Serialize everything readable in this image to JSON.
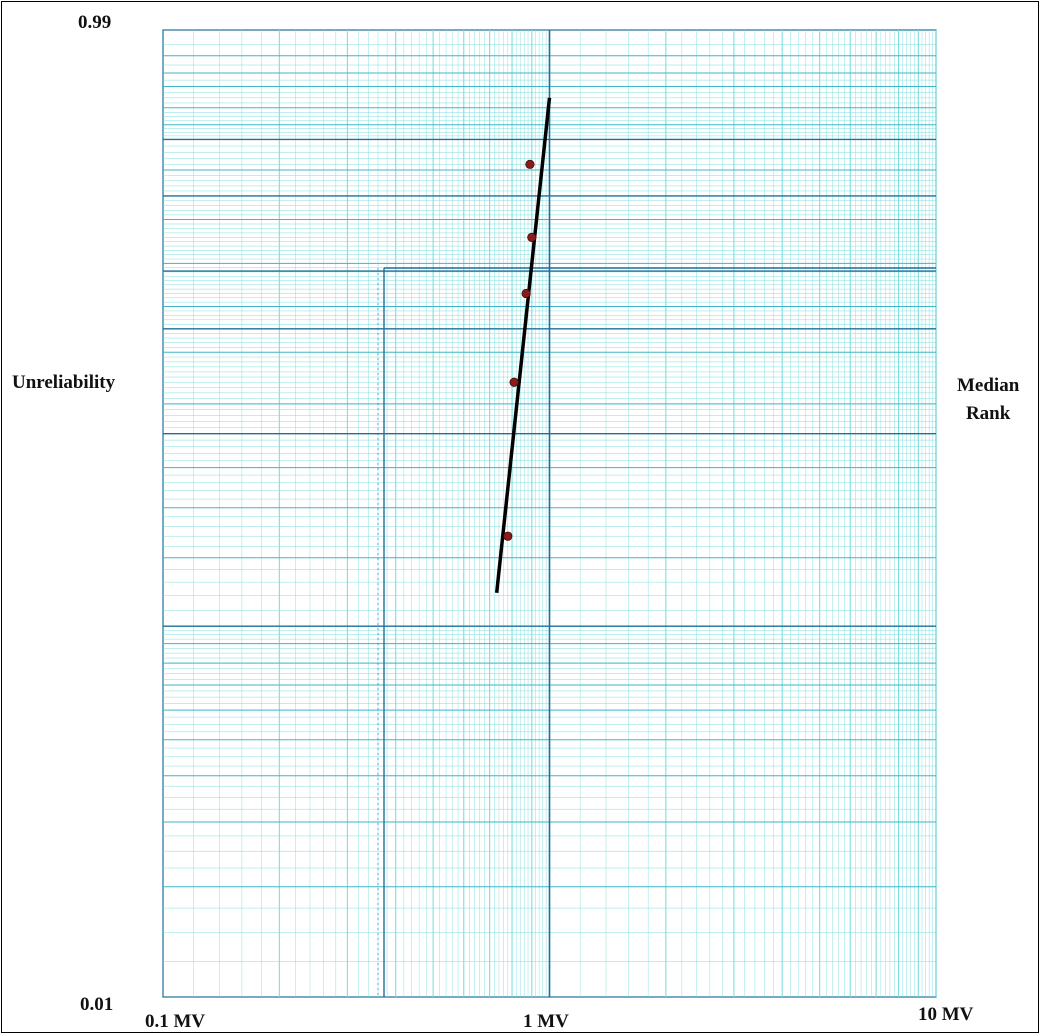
{
  "chart_data": {
    "type": "scatter",
    "paper": "weibull probability paper",
    "x_scale": "log",
    "y_scale": "weibull",
    "xlim": [
      0.1,
      10
    ],
    "ylim": [
      0.01,
      0.99
    ],
    "y_tick_labels": {
      "top": "0.99",
      "bottom": "0.01"
    },
    "x_tick_labels": [
      "0.1 MV",
      "1 MV",
      "10 MV"
    ],
    "ylabel": "Unreliability",
    "right_label_line1": "Median",
    "right_label_line2": "Rank",
    "grid": true,
    "points": [
      {
        "x": 0.78,
        "y": 0.17
      },
      {
        "x": 0.81,
        "y": 0.39
      },
      {
        "x": 0.87,
        "y": 0.58
      },
      {
        "x": 0.9,
        "y": 0.71
      },
      {
        "x": 0.89,
        "y": 0.86
      }
    ],
    "fit_line": {
      "x": [
        0.73,
        1.0
      ],
      "y": [
        0.122,
        0.95
      ]
    },
    "colors": {
      "grid_fine": "#7fdede",
      "grid_major": "#1f6f9a",
      "points": "#8b1a1a",
      "line": "#000000"
    }
  }
}
